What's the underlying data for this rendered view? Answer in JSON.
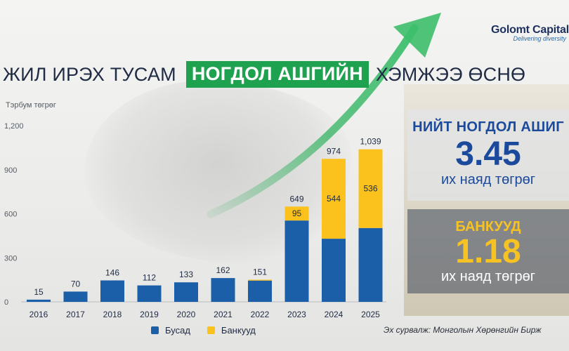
{
  "header": {
    "title_part1": "ЖИЛ ИРЭХ ТУСАМ",
    "title_highlight": "НОГДОЛ АШГИЙН",
    "title_part2": "ХЭМЖЭЭ ӨСНӨ"
  },
  "logo": {
    "name": "Golomt Capital",
    "tagline": "Delivering diversity"
  },
  "chart_data": {
    "type": "bar",
    "stacked": true,
    "ylabel": "Тэрбум төгрөг",
    "ylim": [
      0,
      1200
    ],
    "yticks": [
      0,
      300,
      600,
      900,
      1200
    ],
    "ytick_labels": [
      "0",
      "300",
      "600",
      "900",
      "1,200"
    ],
    "grid": false,
    "categories": [
      "2016",
      "2017",
      "2018",
      "2019",
      "2020",
      "2021",
      "2022",
      "2023",
      "2024",
      "2025"
    ],
    "series": [
      {
        "name": "Бусад",
        "color": "#1b5fa8",
        "values": [
          15,
          70,
          146,
          112,
          133,
          162,
          145,
          554,
          430,
          503
        ]
      },
      {
        "name": "Банкууд",
        "color": "#fbc21d",
        "values": [
          0,
          0,
          0,
          0,
          0,
          0,
          6,
          95,
          544,
          536
        ]
      }
    ],
    "totals": [
      15,
      70,
      146,
      112,
      133,
      162,
      151,
      649,
      974,
      1039
    ],
    "total_labels": [
      "15",
      "70",
      "146",
      "112",
      "133",
      "162",
      "151",
      "649",
      "974",
      "1,039"
    ],
    "bank_labels": [
      "",
      "",
      "",
      "",
      "",
      "",
      "",
      "95",
      "544",
      "536"
    ],
    "legend_position": "bottom"
  },
  "source": "Эх сурвалж: Монголын Хөрөнгийн Бирж",
  "panel_total": {
    "title": "НИЙТ НОГДОЛ АШИГ",
    "value": "3.45",
    "unit": "их наяд төгрөг"
  },
  "panel_banks": {
    "title": "БАНКУУД",
    "value": "1.18",
    "unit": "их наяд төгрөг"
  },
  "colors": {
    "accent_green": "#1fa24f",
    "blue": "#1b5fa8",
    "yellow": "#fbc21d"
  }
}
